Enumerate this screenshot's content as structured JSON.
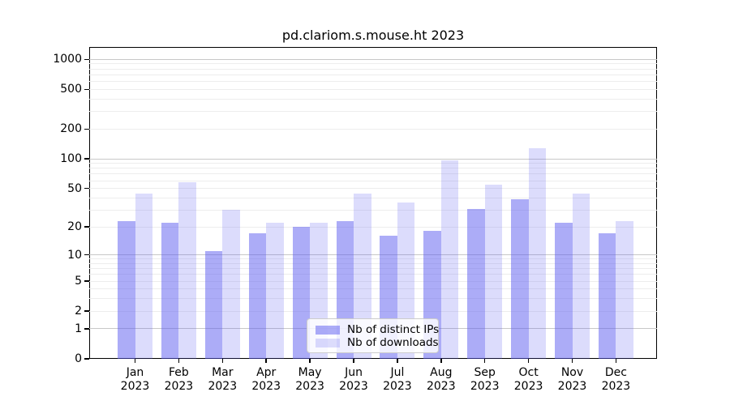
{
  "chart_data": {
    "type": "bar",
    "title": "pd.clariom.s.mouse.ht 2023",
    "categories": [
      "Jan",
      "Feb",
      "Mar",
      "Apr",
      "May",
      "Jun",
      "Jul",
      "Aug",
      "Sep",
      "Oct",
      "Nov",
      "Dec"
    ],
    "x_year_label": "2023",
    "series": [
      {
        "name": "Nb of distinct IPs",
        "color": "rgba(90,90,240,0.50)",
        "values": [
          23,
          22,
          11,
          17,
          20,
          23,
          16,
          18,
          31,
          39,
          22,
          17
        ]
      },
      {
        "name": "Nb of downloads",
        "color": "rgba(90,90,240,0.21)",
        "values": [
          44,
          58,
          30,
          22,
          22,
          44,
          36,
          97,
          55,
          128,
          44,
          23
        ]
      }
    ],
    "xlabel": "",
    "ylabel": "",
    "y_ticks": [
      0,
      1,
      2,
      5,
      10,
      20,
      50,
      100,
      200,
      500,
      1000
    ],
    "y_minor_gridlines": [
      2,
      3,
      4,
      5,
      6,
      7,
      8,
      9,
      20,
      30,
      40,
      50,
      60,
      70,
      80,
      90,
      200,
      300,
      400,
      500,
      600,
      700,
      800,
      900
    ],
    "y_major_gridlines": [
      1,
      10,
      100,
      1000
    ],
    "y_scale": "log10(1+value)",
    "ylim": [
      0,
      1333
    ],
    "grid": true,
    "legend_position": "bottom-center-inside",
    "colors": {
      "spine": "#000000",
      "major_grid": "#c8c8c8",
      "minor_grid": "#ededed",
      "background": "#ffffff"
    }
  }
}
